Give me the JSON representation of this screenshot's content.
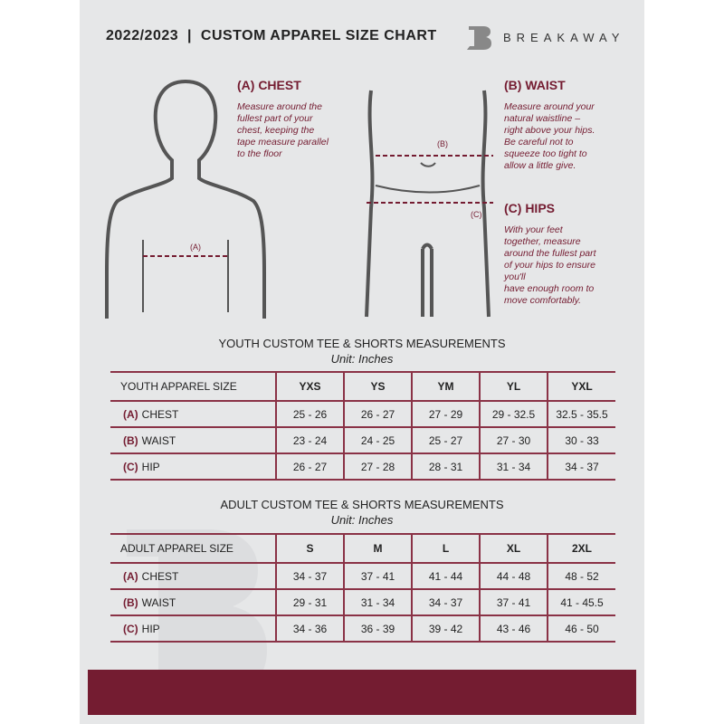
{
  "header": {
    "title": "2022/2023  |  CUSTOM APPAREL SIZE CHART",
    "brand": "BREAKAWAY"
  },
  "measures": {
    "chest": {
      "title": "(A) CHEST",
      "desc": [
        "Measure around the",
        "fullest part of your",
        "chest, keeping the",
        "tape measure parallel",
        "to the floor"
      ],
      "marker": "(A)"
    },
    "waist": {
      "title": "(B) WAIST",
      "desc": [
        "Measure around your",
        "natural waistline –",
        "right above your hips.",
        "Be careful not to",
        "squeeze too tight to",
        "allow a little give."
      ],
      "marker": "(B)"
    },
    "hips": {
      "title": "(C) HIPS",
      "desc": [
        "With your feet",
        "together, measure",
        "around the fullest part",
        "of your hips to ensure",
        "you'll",
        "have enough room to",
        "move comfortably."
      ],
      "marker": "(C)"
    }
  },
  "youth": {
    "title": "YOUTH CUSTOM TEE & SHORTS MEASUREMENTS",
    "unit": "Unit: Inches",
    "header": "YOUTH APPAREL SIZE",
    "sizes": [
      "YXS",
      "YS",
      "YM",
      "YL",
      "YXL"
    ],
    "rows": [
      {
        "tag": "(A)",
        "label": "CHEST",
        "values": [
          "25 - 26",
          "26 - 27",
          "27 - 29",
          "29 - 32.5",
          "32.5 - 35.5"
        ]
      },
      {
        "tag": "(B)",
        "label": "WAIST",
        "values": [
          "23 - 24",
          "24 - 25",
          "25 - 27",
          "27 - 30",
          "30 - 33"
        ]
      },
      {
        "tag": "(C)",
        "label": "HIP",
        "values": [
          "26 - 27",
          "27 - 28",
          "28 - 31",
          "31 - 34",
          "34 - 37"
        ]
      }
    ]
  },
  "adult": {
    "title": "ADULT CUSTOM TEE & SHORTS MEASUREMENTS",
    "unit": "Unit: Inches",
    "header": "ADULT APPAREL SIZE",
    "sizes": [
      "S",
      "M",
      "L",
      "XL",
      "2XL"
    ],
    "rows": [
      {
        "tag": "(A)",
        "label": "CHEST",
        "values": [
          "34 - 37",
          "37 - 41",
          "41 - 44",
          "44 - 48",
          "48 - 52"
        ]
      },
      {
        "tag": "(B)",
        "label": "WAIST",
        "values": [
          "29 - 31",
          "31 - 34",
          "34 - 37",
          "37 - 41",
          "41 - 45.5"
        ]
      },
      {
        "tag": "(C)",
        "label": "HIP",
        "values": [
          "34 - 36",
          "36 - 39",
          "39 - 42",
          "43 - 46",
          "46 - 50"
        ]
      }
    ]
  },
  "colors": {
    "accent": "#741c31",
    "background": "#e6e7e8"
  }
}
